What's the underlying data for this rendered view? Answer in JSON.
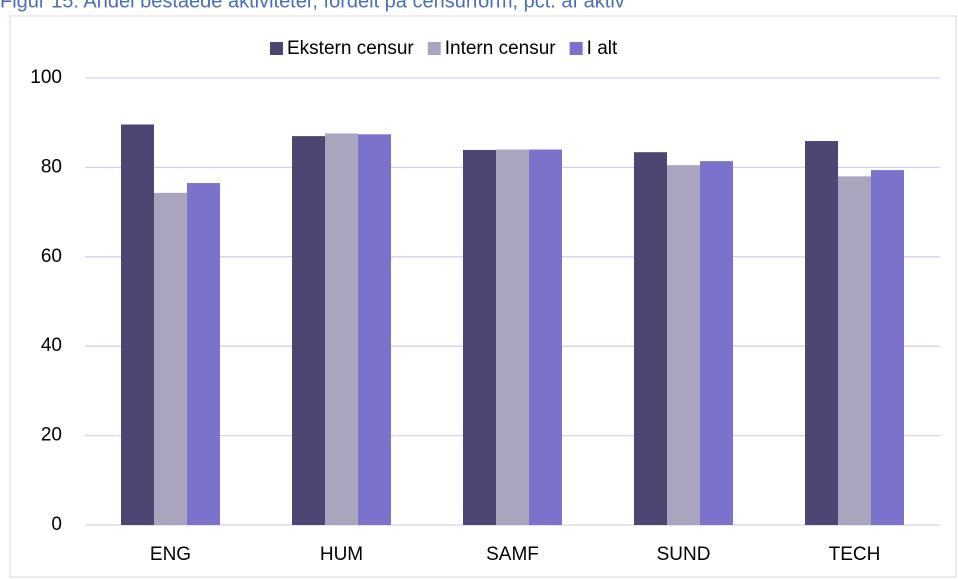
{
  "chart_data": {
    "type": "bar",
    "title": "Figur 15: Andel beståede aktiviteter, fordelt på censurform, pct. af aktiv",
    "categories": [
      "ENG",
      "HUM",
      "SAMF",
      "SUND",
      "TECH"
    ],
    "series": [
      {
        "name": "Ekstern censur",
        "color": "#4b4672",
        "values": [
          89.6,
          87.0,
          83.9,
          83.4,
          85.9
        ]
      },
      {
        "name": "Intern censur",
        "color": "#a8a5bf",
        "values": [
          74.3,
          87.6,
          84.0,
          80.5,
          78.0
        ]
      },
      {
        "name": "I alt",
        "color": "#7b72cc",
        "values": [
          76.5,
          87.4,
          84.0,
          81.4,
          79.4
        ]
      }
    ],
    "ylim": [
      0,
      100
    ],
    "yticks": [
      0,
      20,
      40,
      60,
      80,
      100
    ],
    "grid": true,
    "legend": "top"
  }
}
